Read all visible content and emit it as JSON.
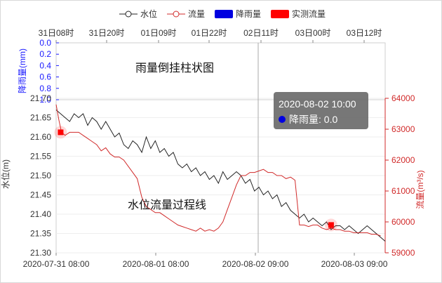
{
  "chart_data": {
    "type": "line",
    "legend": [
      {
        "name": "水位",
        "symbol": "line-circle",
        "color": "#222222"
      },
      {
        "name": "流量",
        "symbol": "line-circle",
        "color": "#d12a2a"
      },
      {
        "name": "降雨量",
        "symbol": "rect",
        "color": "#0000e0"
      },
      {
        "name": "实测流量",
        "symbol": "rect",
        "color": "#ff0000"
      }
    ],
    "top_axis_ticks": [
      "31日08时",
      "31日20时",
      "01日09时",
      "01日22时",
      "02日11时",
      "03日00时",
      "03日12时"
    ],
    "bottom_axis_ticks": [
      "2020-07-31 08:00",
      "2020-08-01 08:00",
      "2020-08-02 09:00",
      "2020-08-03 09:00"
    ],
    "rain_axis": {
      "label": "降雨量(mm)",
      "ticks": [
        "0.0",
        "0.2",
        "0.4",
        "0.6",
        "0.8",
        "1.0"
      ],
      "ylim": [
        0,
        1.0
      ],
      "inverted": true
    },
    "level_axis": {
      "label": "水位(m)",
      "ticks": [
        "21.70",
        "21.65",
        "21.60",
        "21.55",
        "21.50",
        "21.45",
        "21.40",
        "21.35",
        "21.30"
      ],
      "ylim": [
        21.3,
        21.7
      ]
    },
    "flow_axis": {
      "label": "流量(m³/s)",
      "ticks": [
        "64000",
        "63000",
        "62000",
        "61000",
        "60000",
        "59000"
      ],
      "ylim": [
        59000,
        64000
      ]
    },
    "x_range_hours": [
      0,
      73
    ],
    "series": [
      {
        "name": "水位",
        "axis": "level",
        "color": "#222222",
        "x": [
          0,
          1,
          2,
          3,
          4,
          5,
          6,
          7,
          8,
          9,
          10,
          11,
          12,
          13,
          14,
          15,
          16,
          17,
          18,
          19,
          20,
          21,
          22,
          23,
          24,
          25,
          26,
          27,
          28,
          29,
          30,
          31,
          32,
          33,
          34,
          35,
          36,
          37,
          38,
          39,
          40,
          41,
          42,
          43,
          44,
          45,
          46,
          47,
          48,
          49,
          50,
          51,
          52,
          53,
          54,
          55,
          56,
          57,
          58,
          59,
          60,
          61,
          62,
          63,
          64,
          65,
          66,
          67,
          68,
          69,
          70,
          71,
          72,
          73
        ],
        "values": [
          21.67,
          21.66,
          21.65,
          21.64,
          21.66,
          21.65,
          21.66,
          21.63,
          21.65,
          21.64,
          21.62,
          21.64,
          21.62,
          21.6,
          21.61,
          21.58,
          21.57,
          21.59,
          21.58,
          21.56,
          21.6,
          21.57,
          21.59,
          21.56,
          21.57,
          21.55,
          21.56,
          21.53,
          21.52,
          21.53,
          21.51,
          21.52,
          21.5,
          21.51,
          21.49,
          21.5,
          21.48,
          21.51,
          21.49,
          21.5,
          21.51,
          21.5,
          21.48,
          21.49,
          21.46,
          21.47,
          21.45,
          21.46,
          21.44,
          21.45,
          21.42,
          21.43,
          21.41,
          21.4,
          21.39,
          21.4,
          21.38,
          21.39,
          21.38,
          21.37,
          21.38,
          21.36,
          21.37,
          21.37,
          21.36,
          21.37,
          21.36,
          21.35,
          21.36,
          21.37,
          21.36,
          21.35,
          21.34,
          21.33
        ]
      },
      {
        "name": "流量",
        "axis": "flow",
        "color": "#d12a2a",
        "x": [
          0,
          0.6,
          1.2,
          2,
          3,
          4,
          5,
          6,
          7,
          8,
          9,
          10,
          11,
          12,
          13,
          14,
          15,
          16,
          17,
          18,
          19,
          20,
          21,
          22,
          23,
          24,
          25,
          26,
          27,
          28,
          29,
          30,
          31,
          32,
          33,
          34,
          35,
          36,
          37,
          38,
          39,
          40,
          41,
          42,
          43,
          44,
          45,
          46,
          47,
          48,
          49,
          50,
          51,
          52,
          53,
          54,
          55,
          56,
          57,
          58,
          59,
          60,
          61,
          62,
          63,
          64,
          65,
          66,
          67,
          68,
          69,
          70,
          71,
          72
        ],
        "values": [
          63800,
          63300,
          62900,
          62800,
          62900,
          62900,
          62900,
          62800,
          62700,
          62600,
          62500,
          62300,
          62400,
          62200,
          62100,
          62100,
          62000,
          61800,
          61600,
          61400,
          60800,
          60500,
          60400,
          60300,
          60300,
          60200,
          60100,
          60000,
          59900,
          59850,
          59800,
          59750,
          59700,
          59800,
          59700,
          59750,
          59700,
          59800,
          60000,
          60400,
          60800,
          61200,
          61500,
          61500,
          61600,
          61600,
          61650,
          61700,
          61600,
          61600,
          61500,
          61500,
          61400,
          61450,
          61350,
          59900,
          59900,
          59850,
          59900,
          59900,
          59800,
          59750,
          59800,
          59750,
          59750,
          59700,
          59700,
          59650,
          59650,
          59650,
          59650,
          59600,
          59600,
          59550
        ]
      },
      {
        "name": "实测流量",
        "axis": "flow",
        "color": "#ff0000",
        "x": [
          1,
          61
        ],
        "values": [
          62900,
          59900
        ]
      }
    ],
    "annotations": [
      "雨量倒挂柱状图",
      "水位流量过程线"
    ],
    "tooltip": {
      "title": "2020-08-02 10:00",
      "label": "降雨量: 0.0"
    }
  }
}
